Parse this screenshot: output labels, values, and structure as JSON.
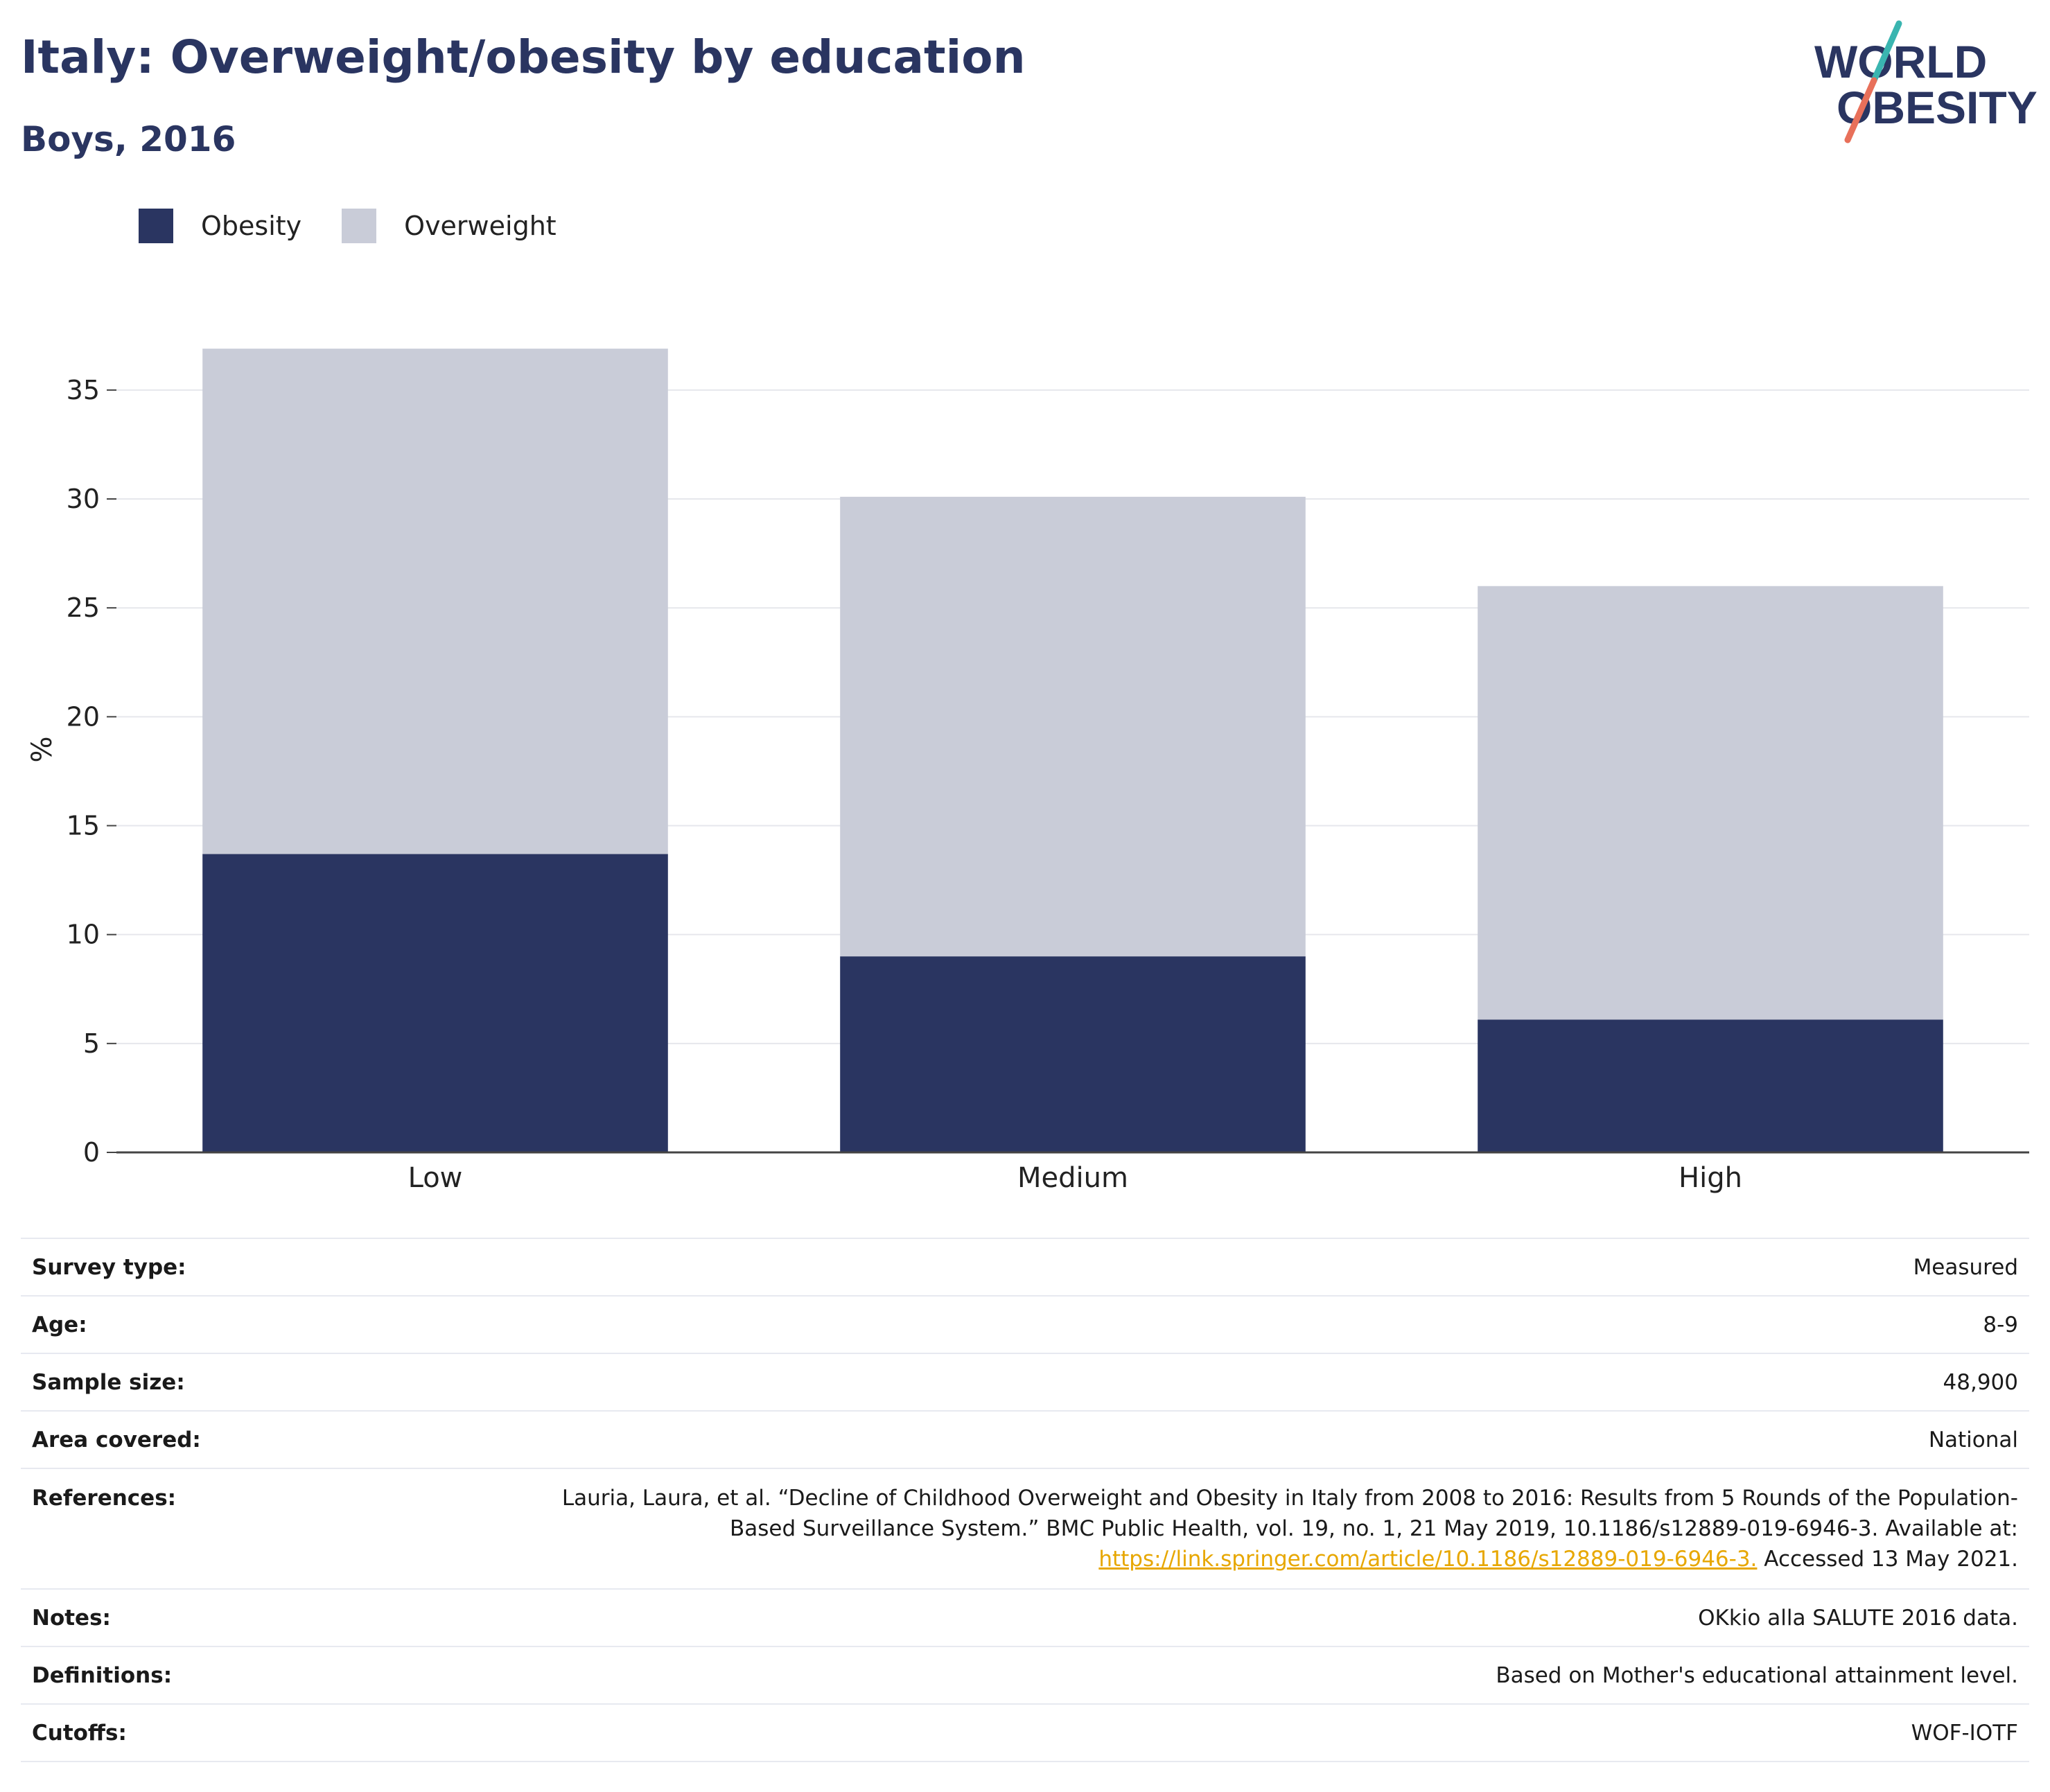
{
  "header": {
    "title": "Italy: Overweight/obesity by education",
    "subtitle": "Boys, 2016"
  },
  "logo": {
    "line1": "WORLD",
    "line2": "OBESITY",
    "colors": {
      "text": "#2a3561",
      "slash_upper": "#3ab5b0",
      "slash_lower": "#e8705a"
    }
  },
  "legend": {
    "items": [
      {
        "label": "Obesity",
        "color": "#2a3561"
      },
      {
        "label": "Overweight",
        "color": "#c9ccd8"
      }
    ]
  },
  "chart_data": {
    "type": "bar",
    "stacked": true,
    "categories": [
      "Low",
      "Medium",
      "High"
    ],
    "series": [
      {
        "name": "Obesity",
        "color": "#2a3561",
        "values": [
          13.7,
          9.0,
          6.1
        ]
      },
      {
        "name": "Overweight",
        "color": "#c9ccd8",
        "values": [
          23.2,
          21.1,
          19.9
        ]
      }
    ],
    "title": "Italy: Overweight/obesity by education",
    "subtitle": "Boys, 2016",
    "xlabel": "",
    "ylabel": "%",
    "ylim": [
      0,
      37
    ],
    "yticks": [
      0,
      5,
      10,
      15,
      20,
      25,
      30,
      35
    ],
    "grid": true,
    "legend_position": "top-left"
  },
  "info": {
    "survey_type": {
      "label": "Survey type:",
      "value": "Measured"
    },
    "age": {
      "label": "Age:",
      "value": "8-9"
    },
    "sample_size": {
      "label": "Sample size:",
      "value": "48,900"
    },
    "area_covered": {
      "label": "Area covered:",
      "value": "National"
    },
    "references": {
      "label": "References:",
      "line1": "Lauria, Laura, et al. “Decline of Childhood Overweight and Obesity in Italy from 2008 to 2016: Results from 5 Rounds of the Population-",
      "line2": "Based Surveillance System.” BMC Public Health, vol. 19, no. 1, 21 May 2019, 10.1186/s12889-019-6946-3. Available at:",
      "link": "https://link.springer.com/article/10.1186/s12889-019-6946-3.",
      "tail": " Accessed 13 May 2021."
    },
    "notes": {
      "label": "Notes:",
      "value": "OKkio alla SALUTE 2016 data."
    },
    "definitions": {
      "label": "Definitions:",
      "value": "Based on Mother's educational attainment level."
    },
    "cutoffs": {
      "label": "Cutoffs:",
      "value": "WOF-IOTF"
    }
  }
}
